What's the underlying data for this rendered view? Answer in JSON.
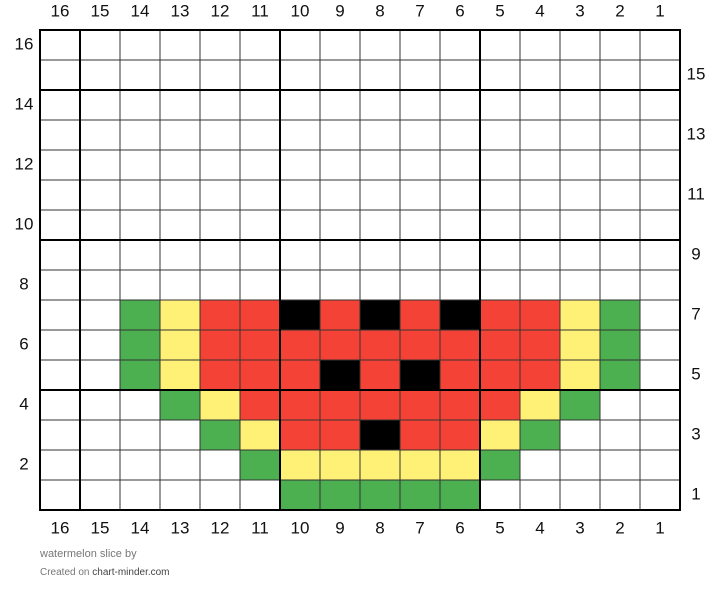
{
  "grid": {
    "columns": [
      16,
      15,
      14,
      13,
      12,
      11,
      10,
      9,
      8,
      7,
      6,
      5,
      4,
      3,
      2,
      1
    ],
    "rows": [
      16,
      15,
      14,
      13,
      12,
      11,
      10,
      9,
      8,
      7,
      6,
      5,
      4,
      3,
      2,
      1
    ],
    "palette": {
      "G": "#4caf50",
      "Y": "#fff176",
      "R": "#f44336",
      "K": "#000000"
    },
    "pattern": [
      "................",
      "................",
      "................",
      "................",
      "................",
      "................",
      "................",
      "................",
      "................",
      "..GYRRKRKRKRRYG.",
      "..GYRRRRRRRRRYG.",
      "..GYRRRKRKRRRYG.",
      "...GYRRRRRRRYG..",
      "....GYRRKRRYG...",
      ".....GYYYYYG....",
      "......GGGGG....."
    ]
  },
  "footer": {
    "title": "watermelon slice",
    "by": "by",
    "created": "Created on",
    "site": "chart-minder.com"
  }
}
